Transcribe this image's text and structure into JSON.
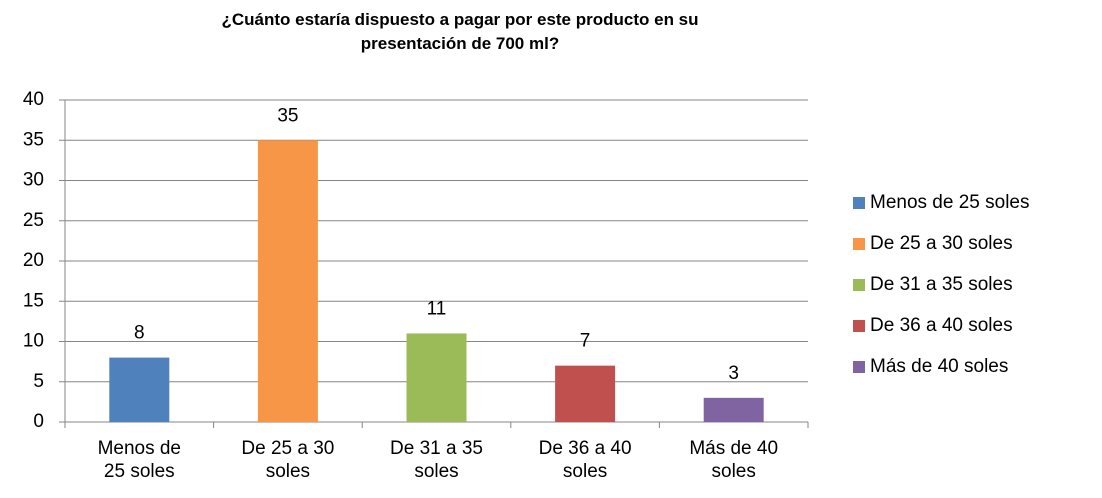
{
  "chart_data": {
    "type": "bar",
    "title": "¿Cuánto estaría dispuesto a pagar por este producto en su presentación de 700 ml?",
    "categories": [
      "Menos de 25 soles",
      "De 25 a 30 soles",
      "De 31 a 35 soles",
      "De 36 a 40 soles",
      "Más de 40 soles"
    ],
    "values": [
      8,
      35,
      11,
      7,
      3
    ],
    "colors": [
      "#4f81bd",
      "#f79646",
      "#9bbb59",
      "#c0504d",
      "#8064a2"
    ],
    "ylim": [
      0,
      40
    ],
    "yticks": [
      0,
      5,
      10,
      15,
      20,
      25,
      30,
      35,
      40
    ],
    "grid": true,
    "legend": "right"
  }
}
